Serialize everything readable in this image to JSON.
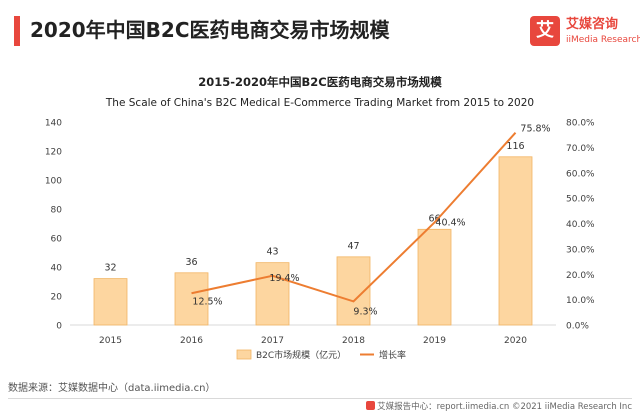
{
  "header": {
    "title": "2020年中国B2C医药电商交易市场规模"
  },
  "logo": {
    "mark": "艾",
    "name_cn": "艾媒咨询",
    "name_en": "iiMedia Research"
  },
  "footer": {
    "source": "数据来源：艾媒数据中心（data.iimedia.cn）",
    "right": "艾媒报告中心：report.iimedia.cn ©2021 iiMedia Research Inc"
  },
  "colors": {
    "accent": "#e8473d",
    "bar_fill": "#fdd6a0",
    "bar_stroke": "#f2b563",
    "line": "#ed7d31",
    "axis": "#d9d9d9",
    "text": "#404040"
  },
  "chart_data": {
    "type": "bar",
    "title": "2015-2020年中国B2C医药电商交易市场规模",
    "subtitle": "The Scale of China's B2C Medical E-Commerce Trading Market from 2015 to 2020",
    "categories": [
      "2015",
      "2016",
      "2017",
      "2018",
      "2019",
      "2020"
    ],
    "series": [
      {
        "name": "B2C市场规模（亿元）",
        "type": "bar",
        "axis": "left",
        "values": [
          32,
          36,
          43,
          47,
          66,
          116
        ],
        "labels": [
          "32",
          "36",
          "43",
          "47",
          "66",
          "116"
        ]
      },
      {
        "name": "增长率",
        "type": "line",
        "axis": "right",
        "values": [
          null,
          12.5,
          19.4,
          9.3,
          40.4,
          75.8
        ],
        "labels": [
          "",
          "12.5%",
          "19.4%",
          "9.3%",
          "40.4%",
          "75.8%"
        ]
      }
    ],
    "ylim_left": [
      0,
      140
    ],
    "yticks_left": [
      "0",
      "20",
      "40",
      "60",
      "80",
      "100",
      "120",
      "140"
    ],
    "ylim_right": [
      0,
      80
    ],
    "yticks_right": [
      "0.0%",
      "10.0%",
      "20.0%",
      "30.0%",
      "40.0%",
      "50.0%",
      "60.0%",
      "70.0%",
      "80.0%"
    ],
    "grid": false,
    "legend_position": "bottom"
  }
}
